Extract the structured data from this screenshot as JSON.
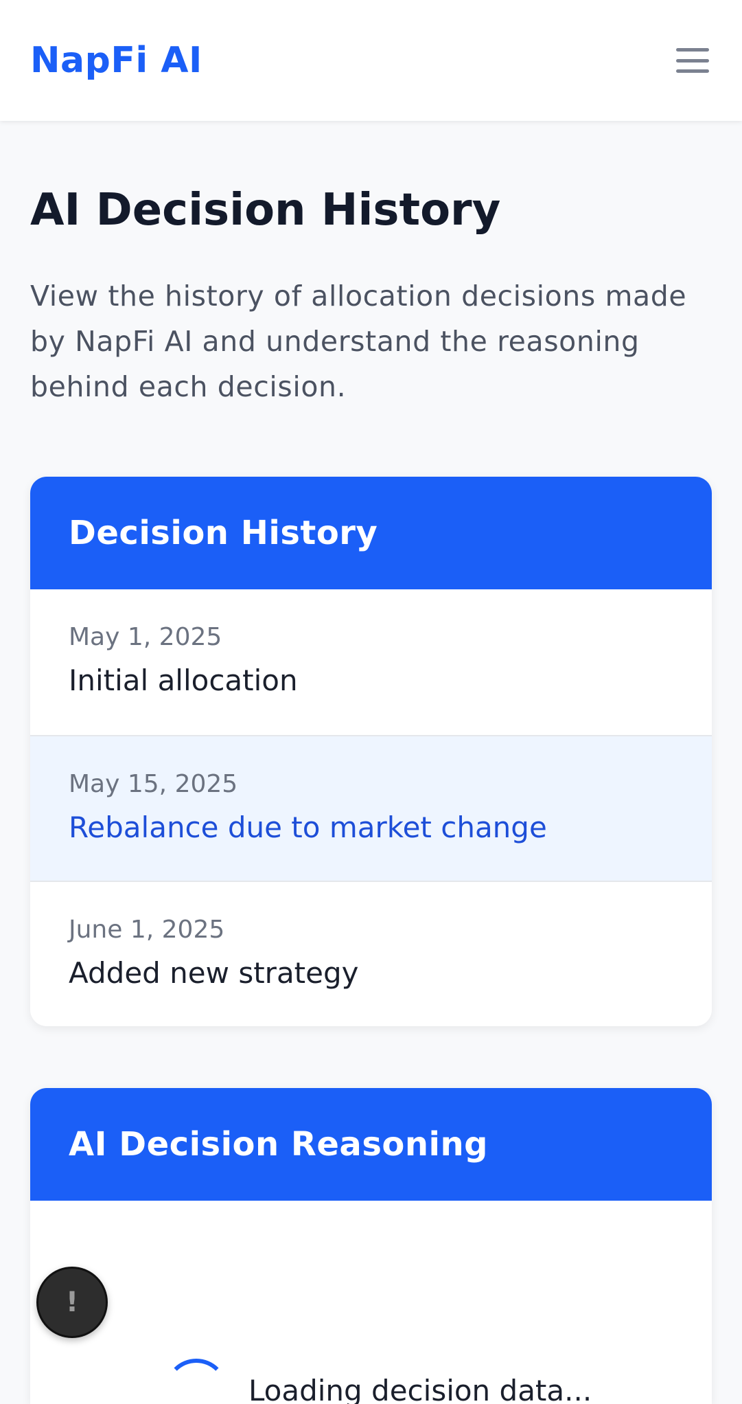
{
  "brand": "NapFi AI",
  "menu_icon": "hamburger-menu-icon",
  "page": {
    "title": "AI Decision History",
    "description": "View the history of allocation decisions made by NapFi AI and understand the reasoning behind each decision."
  },
  "history": {
    "title": "Decision History",
    "entries": [
      {
        "date": "May 1, 2025",
        "title": "Initial allocation"
      },
      {
        "date": "May 15, 2025",
        "title": "Rebalance due to market change"
      },
      {
        "date": "June 1, 2025",
        "title": "Added new strategy"
      }
    ]
  },
  "reasoning": {
    "title": "AI Decision Reasoning",
    "loading_text": "Loading decision data..."
  },
  "fab": {
    "label": "!"
  },
  "colors": {
    "primary": "#1b5ff7",
    "selected_bg": "#eef5ff",
    "selected_text": "#1d4ed8"
  }
}
